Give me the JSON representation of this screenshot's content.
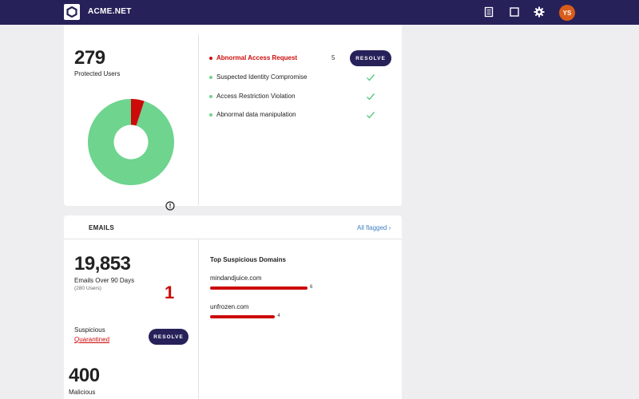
{
  "header": {
    "brand": "ACME.NET",
    "logo_icon": "hexagon-logo-icon",
    "icons": [
      "document-list-icon",
      "square-icon",
      "gear-icon"
    ],
    "avatar_initials": "YS",
    "avatar_color": "#d95d1a",
    "bar_color": "#27215a"
  },
  "users_card": {
    "count": "279",
    "label": "Protected Users",
    "chart_data": {
      "type": "pie",
      "style": "donut",
      "slices": [
        {
          "label": "Abnormal",
          "value": 5,
          "color": "#cc0a0a"
        },
        {
          "label": "Normal",
          "value": 95,
          "color": "#6ed48e"
        }
      ]
    },
    "warning_icon": "exclamation-circle-icon",
    "alerts": [
      {
        "label": "Abnormal Access Request",
        "count": "5",
        "status": "active",
        "action": "RESOLVE"
      },
      {
        "label": "Suspected Identity Compromise",
        "status": "ok",
        "icon": "check-icon"
      },
      {
        "label": "Access Restriction Violation",
        "status": "ok",
        "icon": "check-icon"
      },
      {
        "label": "Abnormal data manipulation",
        "status": "ok",
        "icon": "check-icon"
      }
    ]
  },
  "emails_card": {
    "title": "EMAILS",
    "all_flagged": "All flagged ›",
    "count": "19,853",
    "count_label": "Emails Over 90 Days",
    "users_note": "(280 Users)",
    "suspicious_count": "1",
    "suspicious_label": "Suspicious",
    "quarantined_label": "Quarantined",
    "resolve_label": "RESOLVE",
    "malicious_count": "400",
    "malicious_label": "Malicious",
    "domains_title": "Top Suspicious Domains",
    "domains": [
      {
        "name": "mindandjuice.com",
        "count": 6
      },
      {
        "name": "unfrozen.com",
        "count": 4
      }
    ],
    "accent_red": "#cc0a0a"
  }
}
